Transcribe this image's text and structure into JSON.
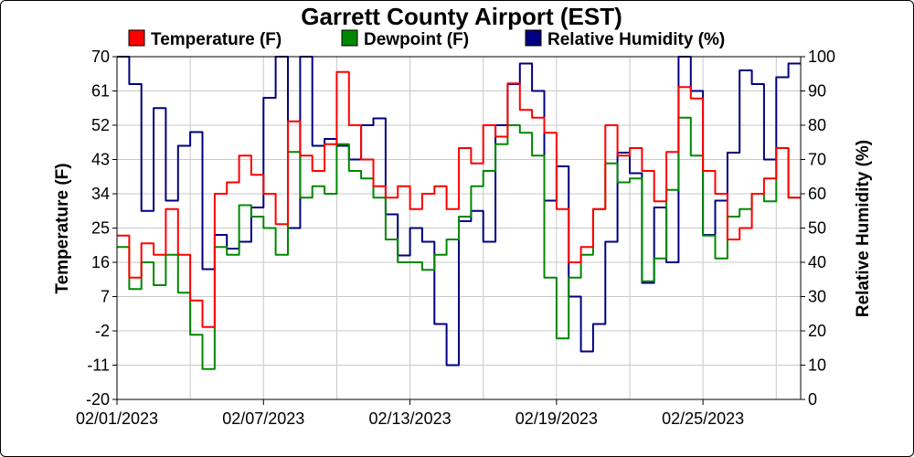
{
  "chart_data": {
    "type": "line",
    "title": "Garrett County Airport (EST)",
    "ylabel_left": "Temperature (F)",
    "ylabel_right": "Relative Humidity (%)",
    "ylim_left": [
      -20,
      70
    ],
    "ylim_right": [
      0,
      100
    ],
    "yticks_left": [
      -20,
      -11,
      -2,
      7,
      16,
      25,
      34,
      43,
      52,
      61,
      70
    ],
    "yticks_right": [
      0,
      10,
      20,
      30,
      40,
      50,
      60,
      70,
      80,
      90,
      100
    ],
    "xlim": [
      "2023-02-01",
      "2023-03-01"
    ],
    "xticks": [
      "02/01/2023",
      "02/07/2023",
      "02/13/2023",
      "02/19/2023",
      "02/25/2023"
    ],
    "grid": true,
    "legend": "top",
    "series": [
      {
        "name": "Temperature (F)",
        "axis": "left",
        "color": "#ff0000",
        "x": [
          "2023-02-01 00:00",
          "2023-02-01 12:00",
          "2023-02-02 00:00",
          "2023-02-02 12:00",
          "2023-02-03 00:00",
          "2023-02-03 12:00",
          "2023-02-04 00:00",
          "2023-02-04 12:00",
          "2023-02-05 00:00",
          "2023-02-05 12:00",
          "2023-02-06 00:00",
          "2023-02-06 12:00",
          "2023-02-07 00:00",
          "2023-02-07 12:00",
          "2023-02-08 00:00",
          "2023-02-08 12:00",
          "2023-02-09 00:00",
          "2023-02-09 12:00",
          "2023-02-10 00:00",
          "2023-02-10 12:00",
          "2023-02-11 00:00",
          "2023-02-11 12:00",
          "2023-02-12 00:00",
          "2023-02-12 12:00",
          "2023-02-13 00:00",
          "2023-02-13 12:00",
          "2023-02-14 00:00",
          "2023-02-14 12:00",
          "2023-02-15 00:00",
          "2023-02-15 12:00",
          "2023-02-16 00:00",
          "2023-02-16 12:00",
          "2023-02-17 00:00",
          "2023-02-17 12:00",
          "2023-02-18 00:00",
          "2023-02-18 12:00",
          "2023-02-19 00:00",
          "2023-02-19 12:00",
          "2023-02-20 00:00",
          "2023-02-20 12:00",
          "2023-02-21 00:00",
          "2023-02-21 12:00",
          "2023-02-22 00:00",
          "2023-02-22 12:00",
          "2023-02-23 00:00",
          "2023-02-23 12:00",
          "2023-02-24 00:00",
          "2023-02-24 12:00",
          "2023-02-25 00:00",
          "2023-02-25 12:00",
          "2023-02-26 00:00",
          "2023-02-26 12:00",
          "2023-02-27 00:00",
          "2023-02-27 12:00",
          "2023-02-28 00:00",
          "2023-02-28 12:00"
        ],
        "values": [
          23,
          12,
          21,
          18,
          30,
          18,
          6,
          -1,
          34,
          37,
          44,
          39,
          34,
          26,
          53,
          44,
          40,
          47,
          66,
          52,
          43,
          36,
          33,
          36,
          30,
          34,
          36,
          30,
          46,
          42,
          52,
          49,
          63,
          56,
          54,
          50,
          30,
          16,
          20,
          30,
          52,
          44,
          46,
          40,
          32,
          45,
          62,
          59,
          40,
          34,
          22,
          25,
          34,
          38,
          46,
          33
        ]
      },
      {
        "name": "Dewpoint (F)",
        "axis": "left",
        "color": "#008800",
        "x": [
          "2023-02-01 00:00",
          "2023-02-01 12:00",
          "2023-02-02 00:00",
          "2023-02-02 12:00",
          "2023-02-03 00:00",
          "2023-02-03 12:00",
          "2023-02-04 00:00",
          "2023-02-04 12:00",
          "2023-02-05 00:00",
          "2023-02-05 12:00",
          "2023-02-06 00:00",
          "2023-02-06 12:00",
          "2023-02-07 00:00",
          "2023-02-07 12:00",
          "2023-02-08 00:00",
          "2023-02-08 12:00",
          "2023-02-09 00:00",
          "2023-02-09 12:00",
          "2023-02-10 00:00",
          "2023-02-10 12:00",
          "2023-02-11 00:00",
          "2023-02-11 12:00",
          "2023-02-12 00:00",
          "2023-02-12 12:00",
          "2023-02-13 00:00",
          "2023-02-13 12:00",
          "2023-02-14 00:00",
          "2023-02-14 12:00",
          "2023-02-15 00:00",
          "2023-02-15 12:00",
          "2023-02-16 00:00",
          "2023-02-16 12:00",
          "2023-02-17 00:00",
          "2023-02-17 12:00",
          "2023-02-18 00:00",
          "2023-02-18 12:00",
          "2023-02-19 00:00",
          "2023-02-19 12:00",
          "2023-02-20 00:00",
          "2023-02-20 12:00",
          "2023-02-21 00:00",
          "2023-02-21 12:00",
          "2023-02-22 00:00",
          "2023-02-22 12:00",
          "2023-02-23 00:00",
          "2023-02-23 12:00",
          "2023-02-24 00:00",
          "2023-02-24 12:00",
          "2023-02-25 00:00",
          "2023-02-25 12:00",
          "2023-02-26 00:00",
          "2023-02-26 12:00",
          "2023-02-27 00:00",
          "2023-02-27 12:00",
          "2023-02-28 00:00",
          "2023-02-28 12:00"
        ],
        "values": [
          20,
          9,
          16,
          10,
          18,
          8,
          -3,
          -12,
          20,
          18,
          31,
          28,
          25,
          18,
          45,
          33,
          36,
          34,
          47,
          40,
          38,
          33,
          22,
          16,
          16,
          14,
          18,
          22,
          28,
          36,
          40,
          47,
          52,
          50,
          44,
          12,
          -4,
          12,
          18,
          30,
          42,
          37,
          38,
          11,
          17,
          35,
          54,
          44,
          23,
          17,
          28,
          30,
          34,
          32,
          46,
          33
        ]
      },
      {
        "name": "Relative Humidity (%)",
        "axis": "right",
        "color": "#000080",
        "x": [
          "2023-02-01 00:00",
          "2023-02-01 12:00",
          "2023-02-02 00:00",
          "2023-02-02 12:00",
          "2023-02-03 00:00",
          "2023-02-03 12:00",
          "2023-02-04 00:00",
          "2023-02-04 12:00",
          "2023-02-05 00:00",
          "2023-02-05 12:00",
          "2023-02-06 00:00",
          "2023-02-06 12:00",
          "2023-02-07 00:00",
          "2023-02-07 12:00",
          "2023-02-08 00:00",
          "2023-02-08 12:00",
          "2023-02-09 00:00",
          "2023-02-09 12:00",
          "2023-02-10 00:00",
          "2023-02-10 12:00",
          "2023-02-11 00:00",
          "2023-02-11 12:00",
          "2023-02-12 00:00",
          "2023-02-12 12:00",
          "2023-02-13 00:00",
          "2023-02-13 12:00",
          "2023-02-14 00:00",
          "2023-02-14 12:00",
          "2023-02-15 00:00",
          "2023-02-15 12:00",
          "2023-02-16 00:00",
          "2023-02-16 12:00",
          "2023-02-17 00:00",
          "2023-02-17 12:00",
          "2023-02-18 00:00",
          "2023-02-18 12:00",
          "2023-02-19 00:00",
          "2023-02-19 12:00",
          "2023-02-20 00:00",
          "2023-02-20 12:00",
          "2023-02-21 00:00",
          "2023-02-21 12:00",
          "2023-02-22 00:00",
          "2023-02-22 12:00",
          "2023-02-23 00:00",
          "2023-02-23 12:00",
          "2023-02-24 00:00",
          "2023-02-24 12:00",
          "2023-02-25 00:00",
          "2023-02-25 12:00",
          "2023-02-26 00:00",
          "2023-02-26 12:00",
          "2023-02-27 00:00",
          "2023-02-27 12:00",
          "2023-02-28 00:00",
          "2023-02-28 12:00"
        ],
        "values": [
          100,
          92,
          55,
          85,
          58,
          74,
          78,
          38,
          48,
          44,
          46,
          56,
          88,
          100,
          50,
          100,
          74,
          76,
          74,
          70,
          80,
          82,
          54,
          42,
          50,
          46,
          22,
          10,
          52,
          55,
          46,
          80,
          92,
          98,
          90,
          58,
          68,
          30,
          14,
          22,
          46,
          72,
          66,
          34,
          56,
          40,
          100,
          90,
          48,
          58,
          72,
          96,
          92,
          70,
          94,
          98
        ]
      }
    ]
  }
}
